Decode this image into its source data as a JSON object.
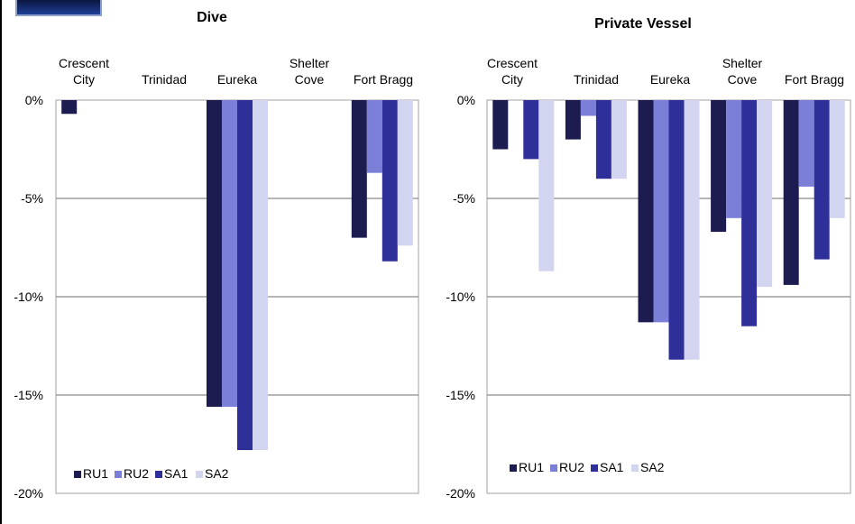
{
  "chart_data": [
    {
      "type": "bar",
      "title": "Dive",
      "categories": [
        "Crescent City",
        "Trinidad",
        "Eureka",
        "Shelter Cove",
        "Fort Bragg"
      ],
      "yticks": [
        "0%",
        "-5%",
        "-10%",
        "-15%",
        "-20%"
      ],
      "ylim": [
        -20,
        0
      ],
      "grid": true,
      "legend_position": "bottom-left",
      "series": [
        {
          "name": "RU1",
          "color": "#1c1c50",
          "values": [
            -0.7,
            0,
            -15.6,
            0,
            -7.0
          ]
        },
        {
          "name": "RU2",
          "color": "#7b7fd8",
          "values": [
            0,
            0,
            -15.6,
            0,
            -3.7
          ]
        },
        {
          "name": "SA1",
          "color": "#2f2f9a",
          "values": [
            0,
            0,
            -17.8,
            0,
            -8.2
          ]
        },
        {
          "name": "SA2",
          "color": "#d2d4f0",
          "values": [
            0,
            0,
            -17.8,
            0,
            -7.4
          ]
        }
      ]
    },
    {
      "type": "bar",
      "title": "Private Vessel",
      "categories": [
        "Crescent City",
        "Trinidad",
        "Eureka",
        "Shelter Cove",
        "Fort Bragg"
      ],
      "yticks": [
        "0%",
        "-5%",
        "-10%",
        "-15%",
        "-20%"
      ],
      "ylim": [
        -20,
        0
      ],
      "grid": true,
      "legend_position": "bottom-left",
      "series": [
        {
          "name": "RU1",
          "color": "#1c1c50",
          "values": [
            -2.5,
            -2.0,
            -11.3,
            -6.7,
            -9.4
          ]
        },
        {
          "name": "RU2",
          "color": "#7b7fd8",
          "values": [
            0,
            -0.8,
            -11.3,
            -6.0,
            -4.4
          ]
        },
        {
          "name": "SA1",
          "color": "#2f2f9a",
          "values": [
            -3.0,
            -4.0,
            -13.2,
            -11.5,
            -8.1
          ]
        },
        {
          "name": "SA2",
          "color": "#d2d4f0",
          "values": [
            -8.7,
            -4.0,
            -13.2,
            -9.5,
            -6.0
          ]
        }
      ]
    }
  ]
}
